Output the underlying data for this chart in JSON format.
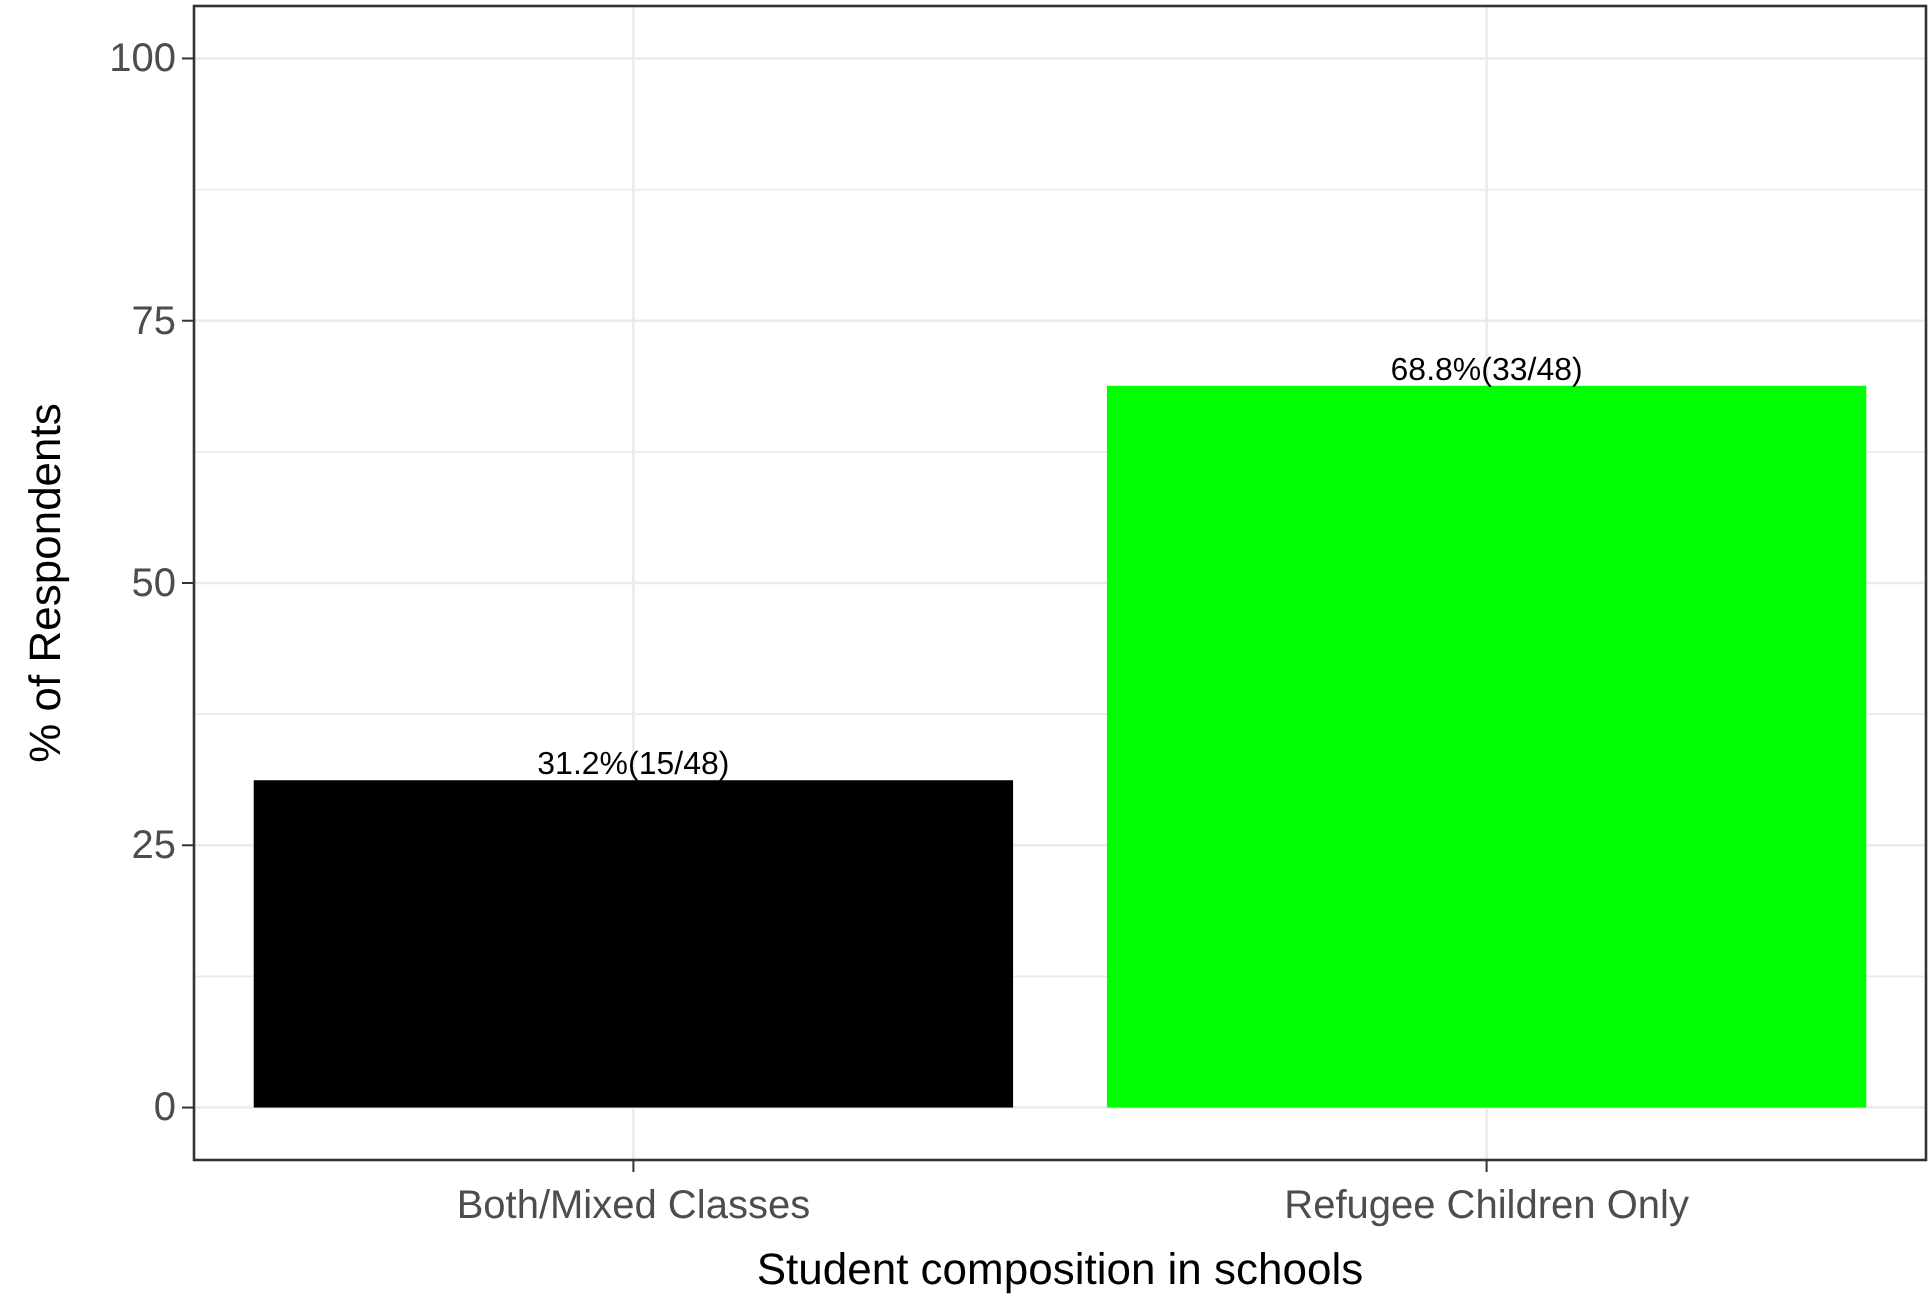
{
  "chart_data": {
    "type": "bar",
    "xlabel": "Student composition in schools",
    "ylabel": "% of Respondents",
    "categories": [
      "Both/Mixed Classes",
      "Refugee Children Only"
    ],
    "values": [
      31.2,
      68.8
    ],
    "colors": [
      "#000000",
      "#00ff00"
    ],
    "value_labels": [
      "31.2%(15/48)",
      "68.8%(33/48)"
    ],
    "ylim": [
      -5,
      105
    ],
    "yticks": [
      0,
      {
        "value": 12.5,
        "label": null
      },
      25,
      {
        "value": 37.5,
        "label": null
      },
      50,
      {
        "value": 62.5,
        "label": null
      },
      75,
      {
        "value": 87.5,
        "label": null
      },
      100
    ],
    "grid": true
  }
}
